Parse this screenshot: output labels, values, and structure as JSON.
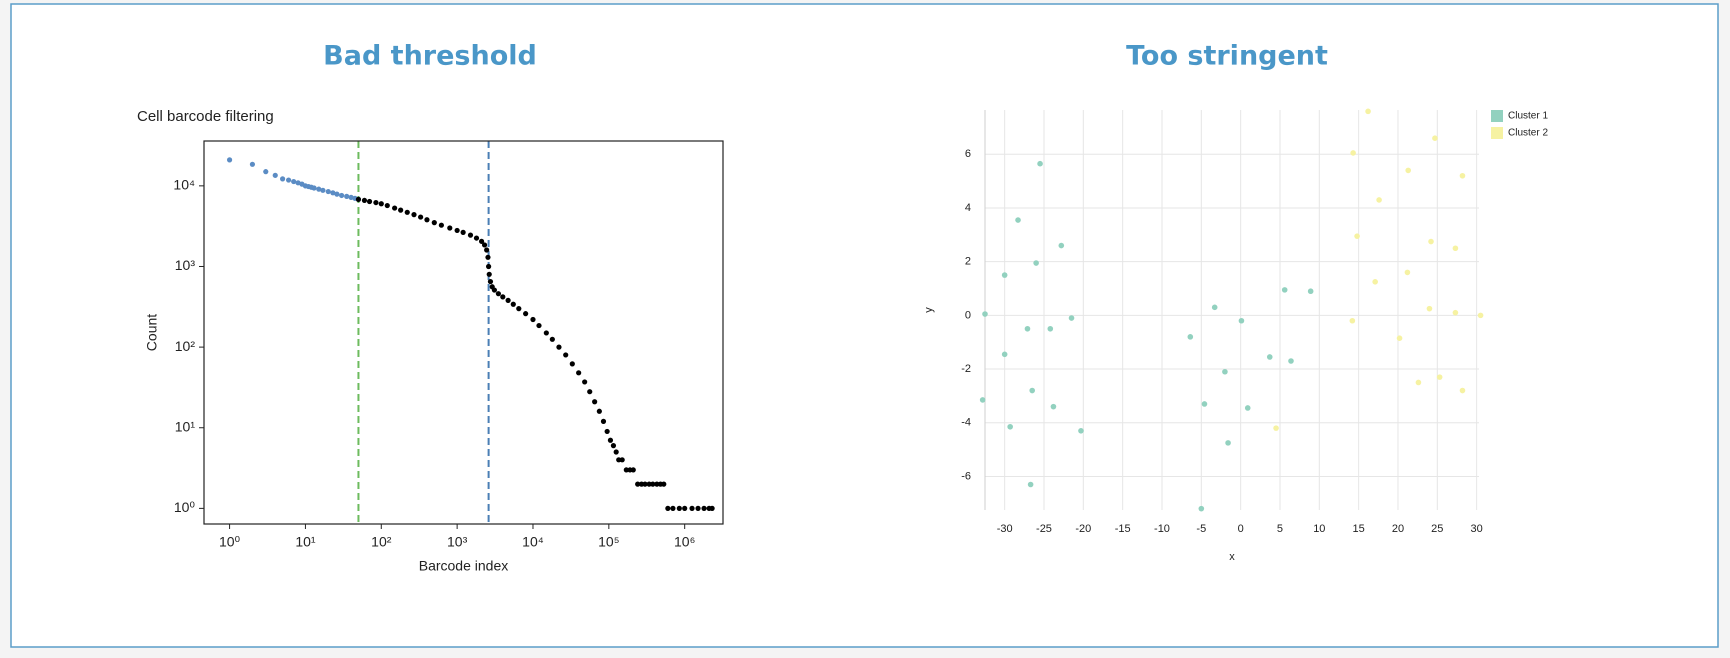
{
  "headings": [
    "Bad threshold",
    "Too stringent"
  ],
  "chart_data": [
    {
      "type": "scatter",
      "title": "Cell barcode filtering",
      "xlabel": "Barcode index",
      "ylabel": "Count",
      "xscale": "log",
      "yscale": "log",
      "grid": false,
      "frame": true,
      "xlim": [
        0.46,
        3200000
      ],
      "ylim": [
        0.64,
        36000
      ],
      "xticks": [
        {
          "value": 1,
          "label": "10⁰"
        },
        {
          "value": 10,
          "label": "10¹"
        },
        {
          "value": 100,
          "label": "10²"
        },
        {
          "value": 1000,
          "label": "10³"
        },
        {
          "value": 10000,
          "label": "10⁴"
        },
        {
          "value": 100000,
          "label": "10⁵"
        },
        {
          "value": 1000000,
          "label": "10⁶"
        }
      ],
      "yticks": [
        {
          "value": 1,
          "label": "10⁰"
        },
        {
          "value": 10,
          "label": "10¹"
        },
        {
          "value": 100,
          "label": "10²"
        },
        {
          "value": 1000,
          "label": "10³"
        },
        {
          "value": 10000,
          "label": "10⁴"
        }
      ],
      "vlines": [
        {
          "value": 50,
          "color": "#6dbb5e"
        },
        {
          "value": 2600,
          "color": "#4a7fb5"
        }
      ],
      "series": [
        {
          "color": "#5b8cc4",
          "x": [
            1,
            2,
            3,
            4,
            5,
            6,
            7,
            8,
            9,
            10,
            11,
            12,
            13,
            15,
            17,
            20,
            23,
            26,
            30,
            35,
            40,
            45,
            50
          ],
          "y": [
            21000,
            18500,
            15000,
            13500,
            12200,
            11800,
            11300,
            10900,
            10500,
            10000,
            9800,
            9600,
            9400,
            9100,
            8800,
            8500,
            8200,
            7900,
            7600,
            7400,
            7200,
            7000,
            6800
          ]
        },
        {
          "color": "#000000",
          "x": [
            50,
            60,
            70,
            85,
            100,
            120,
            150,
            180,
            220,
            270,
            330,
            400,
            500,
            620,
            800,
            1000,
            1200,
            1500,
            1800,
            2100,
            2300,
            2450,
            2550,
            2600,
            2650,
            2750,
            2900,
            3100,
            3500,
            4000,
            4700,
            5500,
            6500,
            8000,
            10000,
            12000,
            15000,
            18000,
            22000,
            27000,
            33000,
            40000,
            48000,
            56000,
            65000,
            75000,
            85000,
            95000,
            105000,
            115000,
            125000,
            135000,
            150000,
            170000,
            190000,
            210000,
            240000,
            270000,
            300000,
            340000,
            380000,
            430000,
            480000,
            530000,
            600000,
            700000,
            850000,
            1000000,
            1250000,
            1500000,
            1800000,
            2100000,
            2300000
          ],
          "y": [
            6800,
            6600,
            6400,
            6200,
            6000,
            5700,
            5300,
            5000,
            4700,
            4400,
            4100,
            3800,
            3500,
            3250,
            3000,
            2800,
            2650,
            2450,
            2250,
            2050,
            1850,
            1600,
            1300,
            1000,
            800,
            650,
            560,
            510,
            460,
            420,
            380,
            340,
            300,
            260,
            220,
            185,
            150,
            125,
            100,
            80,
            62,
            48,
            37,
            28,
            21,
            16,
            12,
            9,
            7,
            6,
            5,
            4,
            4,
            3,
            3,
            3,
            2,
            2,
            2,
            2,
            2,
            2,
            2,
            2,
            1,
            1,
            1,
            1,
            1,
            1,
            1,
            1,
            1
          ]
        }
      ]
    },
    {
      "type": "scatter",
      "xlabel": "x",
      "ylabel": "y",
      "grid": true,
      "frame": false,
      "legend": "top-right",
      "xlim": [
        -32.5,
        30.3
      ],
      "ylim": [
        -7.25,
        7.65
      ],
      "xticks": [
        -30,
        -25,
        -20,
        -15,
        -10,
        -5,
        0,
        5,
        10,
        15,
        20,
        25,
        30
      ],
      "yticks": [
        -6,
        -4,
        -2,
        0,
        2,
        4,
        6
      ],
      "series": [
        {
          "name": "Cluster 1",
          "color": "#92d1bf",
          "x": [
            -32.5,
            -25.5,
            -28.3,
            -22.8,
            -30,
            -26,
            -27.1,
            -24.2,
            -21.5,
            -30,
            -26.5,
            -23.8,
            -32.8,
            -29.3,
            -26.7,
            -20.3,
            -6.4,
            -3.3,
            0.1,
            5.6,
            8.9,
            -2.0,
            3.7,
            6.4,
            -4.6,
            0.9,
            -1.6,
            -5.0
          ],
          "y": [
            0.05,
            5.65,
            3.55,
            2.6,
            1.5,
            1.95,
            -0.5,
            -0.5,
            -0.1,
            -1.45,
            -2.8,
            -3.4,
            -3.15,
            -4.15,
            -6.3,
            -4.3,
            -0.8,
            0.3,
            -0.2,
            0.95,
            0.9,
            -2.1,
            -1.55,
            -1.7,
            -3.3,
            -3.45,
            -4.75,
            -7.2
          ]
        },
        {
          "name": "Cluster 2",
          "color": "#f6f2a2",
          "x": [
            16.2,
            14.3,
            24.7,
            21.3,
            28.2,
            17.6,
            14.8,
            24.2,
            27.3,
            21.2,
            17.1,
            24.0,
            27.3,
            30.5,
            14.2,
            20.2,
            22.6,
            25.3,
            28.2,
            4.5
          ],
          "y": [
            7.6,
            6.05,
            6.6,
            5.4,
            5.2,
            4.3,
            2.95,
            2.75,
            2.5,
            1.6,
            1.25,
            0.25,
            0.1,
            0.0,
            -0.2,
            -0.85,
            -2.5,
            -2.3,
            -2.8,
            -4.2
          ]
        }
      ]
    }
  ]
}
